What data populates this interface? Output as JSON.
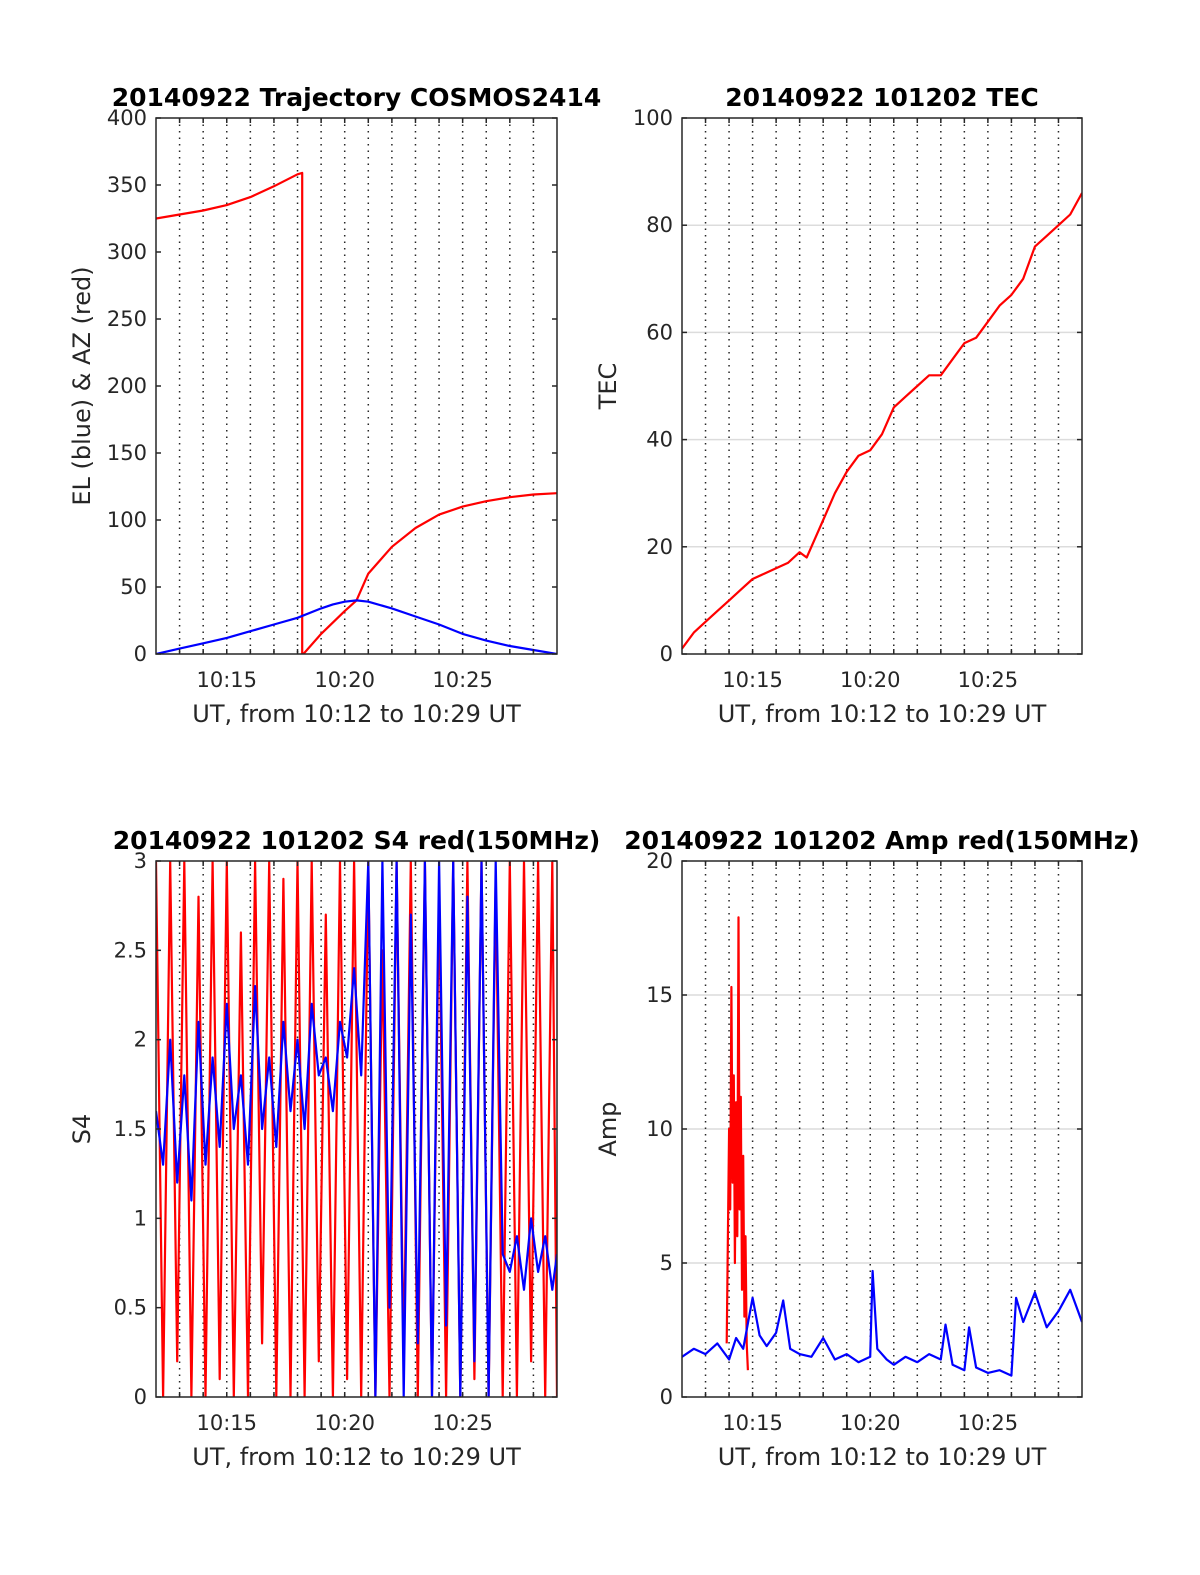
{
  "figure": {
    "background": "#ffffff"
  },
  "colors": {
    "red": "#ff0000",
    "blue": "#0000ff",
    "axis": "#262626",
    "grid": "#262626"
  },
  "chart_data": [
    {
      "type": "line",
      "title": "20140922 Trajectory COSMOS2414",
      "xlabel": "UT, from 10:12 to 10:29 UT",
      "ylabel": "EL (blue) & AZ (red)",
      "xlim": [
        12,
        29
      ],
      "ylim": [
        0,
        400
      ],
      "yticks": [
        0,
        50,
        100,
        150,
        200,
        250,
        300,
        350,
        400
      ],
      "xticks": [
        15,
        20,
        25
      ],
      "xtick_labels": [
        "10:15",
        "10:20",
        "10:25"
      ],
      "x_grid_minutes": [
        13,
        14,
        15,
        16,
        17,
        18,
        19,
        20,
        21,
        22,
        23,
        24,
        25,
        26,
        27,
        28
      ],
      "grid": "x dotted",
      "series": [
        {
          "color": "#ff0000",
          "x": [
            12,
            13,
            14,
            15,
            16,
            17,
            18,
            18.2,
            18.2,
            18.25,
            19,
            20,
            20.5,
            21,
            22,
            23,
            24,
            25,
            26,
            27,
            28,
            29
          ],
          "y": [
            325,
            328,
            331,
            335,
            341,
            349,
            358,
            359,
            0,
            0,
            15,
            32,
            40,
            60,
            80,
            94,
            104,
            110,
            114,
            117,
            119,
            120
          ]
        },
        {
          "color": "#0000ff",
          "x": [
            12,
            13,
            14,
            15,
            16,
            17,
            18,
            19,
            19.5,
            20,
            20.5,
            21,
            22,
            23,
            24,
            25,
            26,
            27,
            28,
            29
          ],
          "y": [
            0,
            4,
            8,
            12,
            17,
            22,
            27,
            34,
            37,
            39,
            40,
            39,
            34,
            28,
            22,
            15,
            10,
            6,
            3,
            0
          ]
        }
      ]
    },
    {
      "type": "line",
      "title": "20140922 101202 TEC",
      "xlabel": "UT, from 10:12 to 10:29 UT",
      "ylabel": "TEC",
      "xlim": [
        12,
        29
      ],
      "ylim": [
        0,
        100
      ],
      "yticks": [
        0,
        20,
        40,
        60,
        80,
        100
      ],
      "xticks": [
        15,
        20,
        25
      ],
      "xtick_labels": [
        "10:15",
        "10:20",
        "10:25"
      ],
      "x_grid_minutes": [
        13,
        14,
        15,
        16,
        17,
        18,
        19,
        20,
        21,
        22,
        23,
        24,
        25,
        26,
        27,
        28
      ],
      "grid": "x dotted, y solid",
      "series": [
        {
          "color": "#ff0000",
          "x": [
            12,
            12.5,
            13,
            13.5,
            14,
            14.5,
            15,
            15.5,
            16,
            16.5,
            17,
            17.3,
            17.5,
            18,
            18.5,
            19,
            19.5,
            20,
            20.5,
            21,
            21.5,
            22,
            22.5,
            23,
            23.5,
            24,
            24.5,
            25,
            25.5,
            26,
            26.5,
            27,
            27.5,
            28,
            28.5,
            29
          ],
          "y": [
            1,
            4,
            6,
            8,
            10,
            12,
            14,
            15,
            16,
            17,
            19,
            18,
            20,
            25,
            30,
            34,
            37,
            38,
            41,
            46,
            48,
            50,
            52,
            52,
            55,
            58,
            59,
            62,
            65,
            67,
            70,
            76,
            78,
            80,
            82,
            86
          ]
        }
      ]
    },
    {
      "type": "line",
      "title": "20140922 101202 S4 red(150MHz)",
      "xlabel": "UT, from 10:12 to 10:29 UT",
      "ylabel": "S4",
      "xlim": [
        12,
        29
      ],
      "ylim": [
        0,
        3
      ],
      "yticks": [
        0,
        0.5,
        1,
        1.5,
        2,
        2.5,
        3
      ],
      "xticks": [
        15,
        20,
        25
      ],
      "xtick_labels": [
        "10:15",
        "10:20",
        "10:25"
      ],
      "x_grid_minutes": [
        13,
        14,
        15,
        16,
        17,
        18,
        19,
        20,
        21,
        22,
        23,
        24,
        25,
        26,
        27,
        28
      ],
      "grid": "x dotted",
      "series": [
        {
          "color": "#ff0000",
          "x": [
            12,
            12.3,
            12.6,
            12.9,
            13.2,
            13.5,
            13.8,
            14.1,
            14.4,
            14.7,
            15,
            15.3,
            15.6,
            15.9,
            16.2,
            16.5,
            16.8,
            17.1,
            17.4,
            17.7,
            18,
            18.3,
            18.6,
            18.9,
            19.2,
            19.5,
            19.8,
            20.1,
            20.4,
            20.7,
            21,
            21.3,
            21.6,
            21.9,
            22.2,
            22.5,
            22.8,
            23.1,
            23.4,
            23.7,
            24,
            24.3,
            24.6,
            24.9,
            25.2,
            25.5,
            25.8,
            26.1,
            26.4,
            26.7,
            27,
            27.3,
            27.6,
            27.9,
            28.2,
            28.5,
            28.8,
            29
          ],
          "y": [
            3,
            0,
            3,
            0.2,
            3,
            0,
            2.8,
            0,
            3,
            0.1,
            3,
            0,
            2.6,
            0,
            3,
            0.3,
            3,
            0,
            2.9,
            0,
            3,
            0,
            3,
            0.2,
            2.7,
            0,
            3,
            0.1,
            3,
            0,
            3,
            0,
            2.5,
            0,
            3,
            0.2,
            3,
            0,
            3,
            0,
            2.8,
            0,
            3,
            0,
            3,
            0.1,
            3,
            0,
            2.9,
            0,
            3,
            0,
            3,
            0.2,
            3,
            0,
            3,
            0
          ]
        },
        {
          "color": "#0000ff",
          "x": [
            12,
            12.3,
            12.6,
            12.9,
            13.2,
            13.5,
            13.8,
            14.1,
            14.4,
            14.7,
            15,
            15.3,
            15.6,
            15.9,
            16.2,
            16.5,
            16.8,
            17.1,
            17.4,
            17.7,
            18,
            18.3,
            18.6,
            18.9,
            19.2,
            19.5,
            19.8,
            20.1,
            20.4,
            20.7,
            21,
            21.3,
            21.6,
            21.9,
            22.2,
            22.5,
            22.8,
            23.1,
            23.4,
            23.7,
            24,
            24.3,
            24.6,
            24.9,
            25.2,
            25.5,
            25.8,
            26.1,
            26.4,
            26.7,
            27,
            27.3,
            27.6,
            27.9,
            28.2,
            28.5,
            28.8,
            29
          ],
          "y": [
            1.6,
            1.3,
            2.0,
            1.2,
            1.8,
            1.1,
            2.1,
            1.3,
            1.9,
            1.4,
            2.2,
            1.5,
            1.8,
            1.3,
            2.3,
            1.5,
            1.9,
            1.4,
            2.1,
            1.6,
            2.0,
            1.5,
            2.2,
            1.8,
            1.9,
            1.6,
            2.1,
            1.9,
            2.4,
            1.8,
            3,
            0,
            3,
            0.5,
            3,
            0,
            2.7,
            0.3,
            3,
            0,
            3,
            0.4,
            3,
            0,
            2.8,
            0.2,
            3,
            0,
            3,
            0.8,
            0.7,
            0.9,
            0.6,
            1.0,
            0.7,
            0.9,
            0.6,
            0.8
          ]
        }
      ]
    },
    {
      "type": "line",
      "title": "20140922 101202 Amp red(150MHz)",
      "xlabel": "UT, from 10:12 to 10:29 UT",
      "ylabel": "Amp",
      "xlim": [
        12,
        29
      ],
      "ylim": [
        0,
        20
      ],
      "yticks": [
        0,
        5,
        10,
        15,
        20
      ],
      "xticks": [
        15,
        20,
        25
      ],
      "xtick_labels": [
        "10:15",
        "10:20",
        "10:25"
      ],
      "x_grid_minutes": [
        13,
        14,
        15,
        16,
        17,
        18,
        19,
        20,
        21,
        22,
        23,
        24,
        25,
        26,
        27,
        28
      ],
      "grid": "x dotted, y solid",
      "series": [
        {
          "color": "#ff0000",
          "x": [
            13.9,
            14.0,
            14.05,
            14.1,
            14.15,
            14.2,
            14.25,
            14.3,
            14.35,
            14.4,
            14.45,
            14.5,
            14.55,
            14.6,
            14.65,
            14.7,
            14.75,
            14.8
          ],
          "y": [
            2,
            10,
            7,
            15.3,
            8,
            12,
            5,
            11,
            6,
            17.9,
            7,
            11.2,
            4,
            9,
            3,
            6,
            2,
            1
          ]
        },
        {
          "color": "#0000ff",
          "x": [
            12,
            12.5,
            13,
            13.5,
            14,
            14.3,
            14.6,
            15,
            15.3,
            15.6,
            16,
            16.3,
            16.6,
            17,
            17.5,
            18,
            18.5,
            19,
            19.5,
            20,
            20.1,
            20.3,
            20.7,
            21,
            21.5,
            22,
            22.5,
            23,
            23.2,
            23.5,
            24,
            24.2,
            24.5,
            25,
            25.5,
            26,
            26.2,
            26.5,
            27,
            27.5,
            28,
            28.5,
            29
          ],
          "y": [
            1.5,
            1.8,
            1.6,
            2.0,
            1.4,
            2.2,
            1.8,
            3.7,
            2.3,
            1.9,
            2.4,
            3.6,
            1.8,
            1.6,
            1.5,
            2.2,
            1.4,
            1.6,
            1.3,
            1.5,
            4.7,
            1.8,
            1.4,
            1.2,
            1.5,
            1.3,
            1.6,
            1.4,
            2.7,
            1.2,
            1.0,
            2.6,
            1.1,
            0.9,
            1.0,
            0.8,
            3.7,
            2.8,
            3.9,
            2.6,
            3.2,
            4.0,
            2.8
          ]
        }
      ]
    }
  ]
}
